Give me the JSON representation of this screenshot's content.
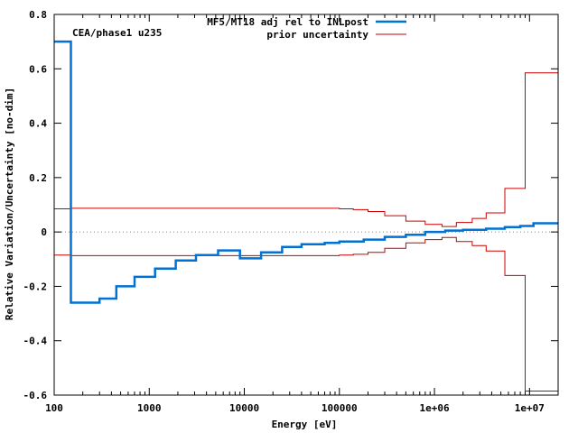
{
  "chart_data": {
    "type": "line",
    "title": "",
    "annotation": "CEA/phase1 u235",
    "xlabel": "Energy [eV]",
    "ylabel": "Relative Variation/Uncertainty [no-dim]",
    "xscale": "log",
    "xlim": [
      100,
      20000000
    ],
    "ylim": [
      -0.6,
      0.8
    ],
    "grid": false,
    "legend_position": "top-right",
    "x_ticks": [
      {
        "value": 100,
        "label": "100"
      },
      {
        "value": 1000,
        "label": "1000"
      },
      {
        "value": 10000,
        "label": "10000"
      },
      {
        "value": 100000,
        "label": "100000"
      },
      {
        "value": 1000000,
        "label": "1e+06"
      },
      {
        "value": 10000000,
        "label": "1e+07"
      }
    ],
    "y_ticks": [
      {
        "value": -0.6,
        "label": "-0.6"
      },
      {
        "value": -0.4,
        "label": "-0.4"
      },
      {
        "value": -0.2,
        "label": "-0.2"
      },
      {
        "value": 0,
        "label": "0"
      },
      {
        "value": 0.2,
        "label": "0.2"
      },
      {
        "value": 0.4,
        "label": "0.4"
      },
      {
        "value": 0.6,
        "label": "0.6"
      },
      {
        "value": 0.8,
        "label": "0.8"
      }
    ],
    "zero_line": {
      "value": 0,
      "style": "dotted",
      "color": "#808080"
    },
    "series": [
      {
        "name": "MF5/MT18 adj rel to INLpost",
        "color": "#0072d4",
        "style": "step",
        "bins": [
          [
            100,
            150,
            0.7
          ],
          [
            150,
            300,
            -0.26
          ],
          [
            300,
            450,
            -0.245
          ],
          [
            450,
            700,
            -0.2
          ],
          [
            700,
            1150,
            -0.165
          ],
          [
            1150,
            1900,
            -0.135
          ],
          [
            1900,
            3100,
            -0.105
          ],
          [
            3100,
            5300,
            -0.085
          ],
          [
            5300,
            9000,
            -0.068
          ],
          [
            9000,
            15000,
            -0.097
          ],
          [
            15000,
            25000,
            -0.075
          ],
          [
            25000,
            40000,
            -0.055
          ],
          [
            40000,
            70000,
            -0.045
          ],
          [
            70000,
            100000,
            -0.04
          ],
          [
            100000,
            180000,
            -0.035
          ],
          [
            180000,
            300000,
            -0.028
          ],
          [
            300000,
            500000,
            -0.018
          ],
          [
            500000,
            800000,
            -0.01
          ],
          [
            800000,
            1300000,
            0.0
          ],
          [
            1300000,
            2000000,
            0.005
          ],
          [
            2000000,
            3500000,
            0.008
          ],
          [
            3500000,
            5500000,
            0.012
          ],
          [
            5500000,
            8000000,
            0.018
          ],
          [
            8000000,
            11000000,
            0.022
          ],
          [
            11000000,
            20000000,
            0.032
          ]
        ]
      },
      {
        "name": "prior uncertainty",
        "color": "#cc0000",
        "style": "step-band",
        "bins": [
          [
            100,
            150,
            0.085
          ],
          [
            150,
            100000,
            0.087
          ],
          [
            100000,
            140000,
            0.085
          ],
          [
            140000,
            200000,
            0.082
          ],
          [
            200000,
            300000,
            0.075
          ],
          [
            300000,
            500000,
            0.06
          ],
          [
            500000,
            800000,
            0.04
          ],
          [
            800000,
            1200000,
            0.028
          ],
          [
            1200000,
            1700000,
            0.02
          ],
          [
            1700000,
            2500000,
            0.035
          ],
          [
            2500000,
            3500000,
            0.05
          ],
          [
            3500000,
            5500000,
            0.07
          ],
          [
            5500000,
            9000000,
            0.16
          ],
          [
            9000000,
            20000000,
            0.585
          ]
        ]
      }
    ]
  }
}
